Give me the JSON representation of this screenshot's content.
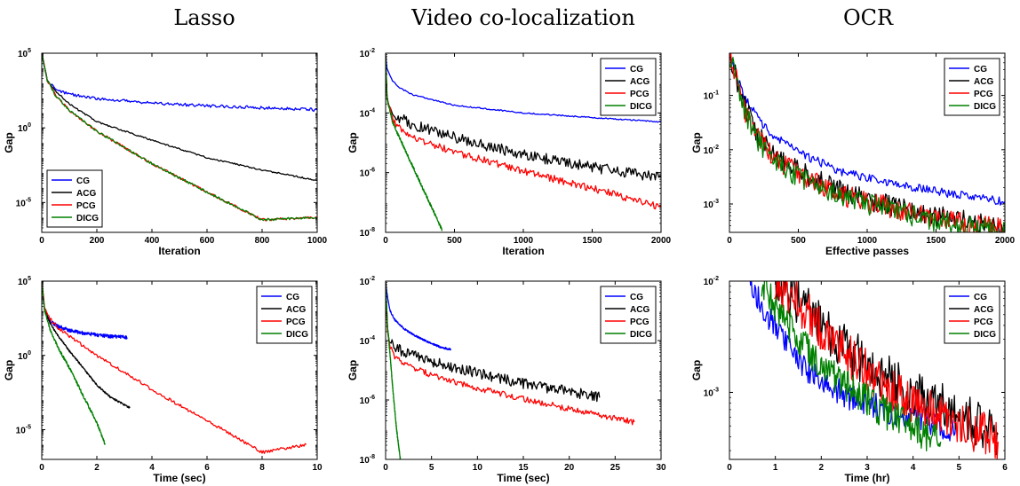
{
  "column_titles": [
    "Lasso",
    "Video co-localization",
    "OCR"
  ],
  "colors": {
    "CG": "#0000ff",
    "ACG": "#000000",
    "PCG": "#ff0000",
    "DICG": "#008000"
  },
  "chart_data": [
    {
      "type": "line",
      "ylog": true,
      "xlabel": "Iteration",
      "ylabel": "Gap",
      "xlim": [
        0,
        1000
      ],
      "ylim": [
        1e-07,
        100000.0
      ],
      "xticks": [
        0,
        200,
        400,
        600,
        800,
        1000
      ],
      "yticks": [
        {
          "v": 100000.0,
          "b": "10",
          "e": "5"
        },
        {
          "v": 1,
          "b": "10",
          "e": "0"
        },
        {
          "v": 1e-05,
          "b": "10",
          "e": "-5"
        }
      ],
      "legend": {
        "position": "bottom-left"
      },
      "series": [
        {
          "name": "CG",
          "x": [
            0,
            20,
            50,
            100,
            200,
            400,
            600,
            800,
            1000
          ],
          "y": [
            100000,
            1500,
            400,
            180,
            90,
            45,
            30,
            22,
            16
          ],
          "noise": 0.1
        },
        {
          "name": "ACG",
          "x": [
            0,
            20,
            50,
            100,
            200,
            400,
            600,
            800,
            1000
          ],
          "y": [
            100000,
            1500,
            300,
            40,
            2.5,
            0.15,
            0.01,
            0.0015,
            0.0003
          ],
          "noise": 0.05
        },
        {
          "name": "PCG",
          "x": [
            0,
            20,
            50,
            100,
            200,
            400,
            600,
            800,
            1000
          ],
          "y": [
            100000,
            1500,
            150,
            15,
            0.6,
            0.004,
            5e-05,
            7e-07,
            1e-06
          ],
          "noise": 0.08
        },
        {
          "name": "DICG",
          "x": [
            0,
            20,
            50,
            100,
            200,
            400,
            600,
            800,
            1000
          ],
          "y": [
            100000,
            1500,
            150,
            15,
            0.6,
            0.004,
            5e-05,
            7e-07,
            1e-06
          ],
          "noise": 0.08
        }
      ]
    },
    {
      "type": "line",
      "ylog": true,
      "xlabel": "Iteration",
      "ylabel": "Gap",
      "xlim": [
        0,
        2000
      ],
      "ylim": [
        1e-08,
        0.01
      ],
      "xticks": [
        0,
        500,
        1000,
        1500,
        2000
      ],
      "yticks": [
        {
          "v": 0.01,
          "b": "10",
          "e": "-2"
        },
        {
          "v": 0.0001,
          "b": "10",
          "e": "-4"
        },
        {
          "v": 1e-06,
          "b": "10",
          "e": "-6"
        },
        {
          "v": 1e-08,
          "b": "10",
          "e": "-8"
        }
      ],
      "legend": {
        "position": "top-right"
      },
      "series": [
        {
          "name": "CG",
          "x": [
            0,
            10,
            50,
            100,
            200,
            500,
            1000,
            1500,
            2000
          ],
          "y": [
            0.008,
            0.003,
            0.0012,
            0.0007,
            0.0004,
            0.00018,
            0.0001,
            7e-05,
            5e-05
          ],
          "noise": 0.02
        },
        {
          "name": "ACG",
          "x": [
            0,
            10,
            50,
            100,
            200,
            500,
            1000,
            1500,
            2000
          ],
          "y": [
            0.008,
            0.0004,
            0.00012,
            7e-05,
            4e-05,
            1.5e-05,
            4e-06,
            1.5e-06,
            7e-07
          ],
          "noise": 0.18
        },
        {
          "name": "PCG",
          "x": [
            0,
            10,
            50,
            100,
            200,
            500,
            1000,
            1500,
            2000
          ],
          "y": [
            0.008,
            0.0003,
            6e-05,
            3e-05,
            1.5e-05,
            5e-06,
            1.1e-06,
            3e-07,
            7e-08
          ],
          "noise": 0.12
        },
        {
          "name": "DICG",
          "x": [
            0,
            10,
            50,
            100,
            200,
            300,
            410
          ],
          "y": [
            0.008,
            0.0003,
            5e-05,
            1.5e-05,
            1.5e-06,
            1.5e-07,
            1.2e-08
          ],
          "noise": 0.05
        }
      ]
    },
    {
      "type": "line",
      "ylog": true,
      "xlabel": "Effective passes",
      "ylabel": "Gap",
      "xlim": [
        0,
        2000
      ],
      "ylim": [
        0.0003,
        0.6
      ],
      "xticks": [
        0,
        500,
        1000,
        1500,
        2000
      ],
      "yticks": [
        {
          "v": 0.1,
          "b": "10",
          "e": "-1"
        },
        {
          "v": 0.01,
          "b": "10",
          "e": "-2"
        },
        {
          "v": 0.001,
          "b": "10",
          "e": "-3"
        }
      ],
      "legend": {
        "position": "top-right"
      },
      "series": [
        {
          "name": "CG",
          "x": [
            0,
            100,
            200,
            300,
            500,
            800,
            1000,
            1500,
            2000
          ],
          "y": [
            0.6,
            0.1,
            0.04,
            0.02,
            0.009,
            0.004,
            0.003,
            0.0017,
            0.0011
          ],
          "noise": 0.08
        },
        {
          "name": "ACG",
          "x": [
            0,
            100,
            200,
            300,
            500,
            800,
            1000,
            1500,
            2000
          ],
          "y": [
            0.6,
            0.07,
            0.02,
            0.009,
            0.004,
            0.0018,
            0.0012,
            0.0006,
            0.00038
          ],
          "noise": 0.2
        },
        {
          "name": "PCG",
          "x": [
            0,
            100,
            200,
            300,
            500,
            800,
            1000,
            1500,
            2000
          ],
          "y": [
            0.6,
            0.06,
            0.018,
            0.008,
            0.0035,
            0.0015,
            0.0011,
            0.00055,
            0.00034
          ],
          "noise": 0.2
        },
        {
          "name": "DICG",
          "x": [
            0,
            100,
            200,
            300,
            500,
            800,
            1000,
            1500,
            2000
          ],
          "y": [
            0.6,
            0.055,
            0.016,
            0.007,
            0.003,
            0.0014,
            0.001,
            0.00048,
            0.0003
          ],
          "noise": 0.2
        }
      ]
    },
    {
      "type": "line",
      "ylog": true,
      "xlabel": "Time (sec)",
      "ylabel": "Gap",
      "xlim": [
        0,
        10
      ],
      "ylim": [
        1e-07,
        100000.0
      ],
      "xticks": [
        0,
        2,
        4,
        6,
        8,
        10
      ],
      "yticks": [
        {
          "v": 100000.0,
          "b": "10",
          "e": "5"
        },
        {
          "v": 1,
          "b": "10",
          "e": "0"
        },
        {
          "v": 1e-05,
          "b": "10",
          "e": "-5"
        }
      ],
      "legend": {
        "position": "top-right"
      },
      "series": [
        {
          "name": "CG",
          "x": [
            0,
            0.1,
            0.3,
            0.6,
            1,
            1.5,
            2,
            2.5,
            3.1
          ],
          "y": [
            100000,
            1200,
            200,
            90,
            50,
            32,
            24,
            19,
            16
          ],
          "noise": 0.12
        },
        {
          "name": "ACG",
          "x": [
            0,
            0.1,
            0.3,
            0.6,
            1,
            1.5,
            2,
            2.5,
            3.2
          ],
          "y": [
            100000,
            1200,
            150,
            20,
            2,
            0.15,
            0.01,
            0.0015,
            0.0003
          ],
          "noise": 0.06
        },
        {
          "name": "PCG",
          "x": [
            0,
            0.1,
            0.3,
            0.6,
            1,
            2,
            4,
            6,
            8,
            9.6
          ],
          "y": [
            100000,
            1500,
            300,
            70,
            20,
            1,
            0.005,
            4e-05,
            3e-07,
            1e-06
          ],
          "noise": 0.1
        },
        {
          "name": "DICG",
          "x": [
            0,
            0.1,
            0.3,
            0.6,
            1,
            1.5,
            2,
            2.3
          ],
          "y": [
            100000,
            1200,
            60,
            3,
            0.15,
            0.002,
            3e-05,
            1e-06
          ],
          "noise": 0.1
        }
      ]
    },
    {
      "type": "line",
      "ylog": true,
      "xlabel": "Time (sec)",
      "ylabel": "Gap",
      "xlim": [
        0,
        30
      ],
      "ylim": [
        1e-08,
        0.01
      ],
      "xticks": [
        0,
        5,
        10,
        15,
        20,
        25,
        30
      ],
      "yticks": [
        {
          "v": 0.01,
          "b": "10",
          "e": "-2"
        },
        {
          "v": 0.0001,
          "b": "10",
          "e": "-4"
        },
        {
          "v": 1e-06,
          "b": "10",
          "e": "-6"
        },
        {
          "v": 1e-08,
          "b": "10",
          "e": "-8"
        }
      ],
      "legend": {
        "position": "top-right"
      },
      "series": [
        {
          "name": "CG",
          "x": [
            0,
            0.2,
            0.5,
            1,
            2,
            3,
            4,
            5,
            6,
            7.1
          ],
          "y": [
            0.008,
            0.003,
            0.001,
            0.0005,
            0.00025,
            0.00016,
            0.00011,
            8e-05,
            6e-05,
            5e-05
          ],
          "noise": 0.03
        },
        {
          "name": "ACG",
          "x": [
            0,
            0.2,
            0.5,
            1,
            2,
            5,
            10,
            15,
            20,
            23.3
          ],
          "y": [
            0.008,
            0.0003,
            9e-05,
            6e-05,
            4e-05,
            2e-05,
            8e-06,
            3.5e-06,
            2e-06,
            1.2e-06
          ],
          "noise": 0.18
        },
        {
          "name": "PCG",
          "x": [
            0,
            0.2,
            0.5,
            1,
            2,
            5,
            10,
            15,
            20,
            25,
            27.1
          ],
          "y": [
            0.008,
            0.0002,
            6e-05,
            3e-05,
            1.6e-05,
            7e-06,
            2.5e-06,
            1.1e-06,
            5e-07,
            2.4e-07,
            1.8e-07
          ],
          "noise": 0.1
        },
        {
          "name": "DICG",
          "x": [
            0,
            0.2,
            0.5,
            0.8,
            1.2,
            1.6
          ],
          "y": [
            0.008,
            0.0003,
            3e-05,
            2e-06,
            1e-07,
            1e-08
          ],
          "noise": 0.06
        }
      ]
    },
    {
      "type": "line",
      "ylog": true,
      "xlabel": "Time (hr)",
      "ylabel": "Gap",
      "xlim": [
        0,
        6
      ],
      "ylim": [
        0.00025,
        0.01
      ],
      "xticks": [
        0,
        1,
        2,
        3,
        4,
        5,
        6
      ],
      "yticks": [
        {
          "v": 0.01,
          "b": "10",
          "e": "-2"
        },
        {
          "v": 0.001,
          "b": "10",
          "e": "-3"
        }
      ],
      "legend": {
        "position": "top-right"
      },
      "series": [
        {
          "name": "CG",
          "x": [
            0.42,
            0.8,
            1.2,
            1.6,
            2,
            2.5,
            3,
            3.5,
            4,
            4.5,
            4.95
          ],
          "y": [
            0.01,
            0.005,
            0.0028,
            0.0017,
            0.00125,
            0.00095,
            0.0008,
            0.00068,
            0.0006,
            0.00052,
            0.00045
          ],
          "noise": 0.12
        },
        {
          "name": "ACG",
          "x": [
            0.98,
            1.2,
            1.5,
            2,
            2.5,
            3,
            3.5,
            4,
            4.5,
            5,
            5.5,
            5.85
          ],
          "y": [
            0.01,
            0.0085,
            0.0065,
            0.004,
            0.0026,
            0.0018,
            0.0013,
            0.001,
            0.00078,
            0.0006,
            0.0005,
            0.00042
          ],
          "noise": 0.22
        },
        {
          "name": "PCG",
          "x": [
            0.98,
            1.2,
            1.5,
            2,
            2.5,
            3,
            3.5,
            4,
            4.5,
            5,
            5.5,
            5.85
          ],
          "y": [
            0.01,
            0.0082,
            0.0062,
            0.0036,
            0.0023,
            0.0016,
            0.0011,
            0.00085,
            0.00065,
            0.00052,
            0.00043,
            0.00036
          ],
          "noise": 0.2
        },
        {
          "name": "DICG",
          "x": [
            0.7,
            1,
            1.4,
            1.8,
            2.2,
            2.6,
            3,
            3.5,
            4,
            4.6
          ],
          "y": [
            0.01,
            0.006,
            0.0035,
            0.0022,
            0.0015,
            0.0011,
            0.00085,
            0.00062,
            0.00048,
            0.00036
          ],
          "noise": 0.15
        }
      ]
    }
  ]
}
